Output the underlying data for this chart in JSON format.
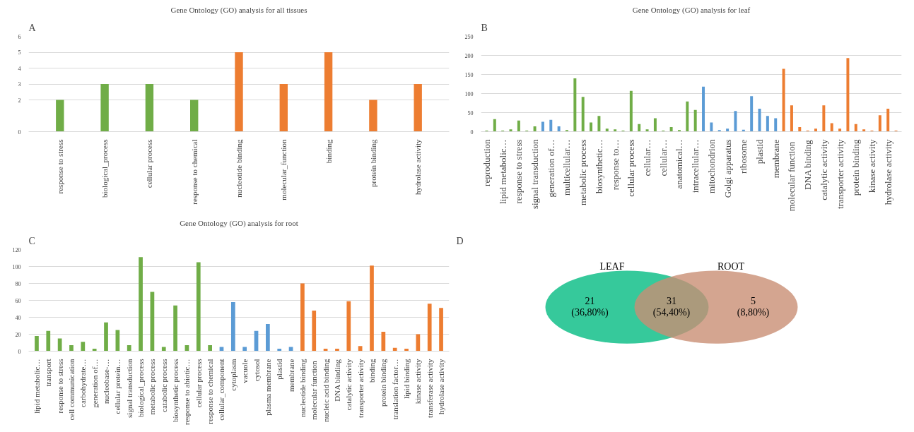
{
  "chart_data": [
    {
      "type": "bar",
      "title": "Gene Ontology (GO) analysis for all tissues",
      "annotations": [
        "A"
      ],
      "categories": [
        "response to stress",
        "biological_process",
        "cellular process",
        "response to chemical",
        "nucleotide binding",
        "molecular_function",
        "binding",
        "protein binding",
        "hydrolase activity"
      ],
      "values": [
        2,
        3,
        3,
        2,
        5,
        3,
        5,
        2,
        3
      ],
      "colors": [
        "#70ad47",
        "#70ad47",
        "#70ad47",
        "#70ad47",
        "#ed7d31",
        "#ed7d31",
        "#ed7d31",
        "#ed7d31",
        "#ed7d31"
      ],
      "ylim": [
        0,
        6
      ],
      "yticks": [
        0,
        2,
        3,
        4,
        5,
        6
      ],
      "grid": "y"
    },
    {
      "type": "bar",
      "title": "Gene Ontology (GO) analysis for leaf",
      "annotations": [
        "B"
      ],
      "categories": [
        "reproduction",
        null,
        "lipid metabolic…",
        null,
        "response to stress",
        null,
        "signal transduction",
        null,
        "generation of…",
        null,
        "multicellular…",
        null,
        "metabolic process",
        null,
        "biosynthetic…",
        null,
        "response to…",
        null,
        "cellular process",
        null,
        "cellular…",
        null,
        "cellular…",
        null,
        "anatomical…",
        null,
        "intracellular…",
        null,
        "mitochondrion",
        null,
        "Golgi apparatus",
        null,
        "ribosome",
        null,
        "plastid",
        null,
        "membrane",
        null,
        "molecular  function",
        null,
        "DNA binding",
        null,
        "catalytic activity",
        null,
        "transporter activity",
        null,
        "protein binding",
        null,
        "kinase activity",
        null,
        "hydrolase activity",
        null
      ],
      "values": [
        3,
        33,
        3,
        6,
        29,
        3,
        14,
        26,
        31,
        14,
        4,
        140,
        91,
        24,
        41,
        8,
        6,
        3,
        107,
        20,
        6,
        35,
        3,
        12,
        4,
        79,
        57,
        118,
        24,
        4,
        8,
        54,
        5,
        93,
        60,
        41,
        35,
        165,
        69,
        12,
        3,
        8,
        69,
        22,
        8,
        193,
        20,
        6,
        3,
        43,
        60,
        3
      ],
      "colors": [
        "#70ad47",
        "#70ad47",
        "#70ad47",
        "#70ad47",
        "#70ad47",
        "#70ad47",
        "#70ad47",
        "#5b9bd5",
        "#5b9bd5",
        "#5b9bd5",
        "#70ad47",
        "#70ad47",
        "#70ad47",
        "#70ad47",
        "#70ad47",
        "#70ad47",
        "#70ad47",
        "#70ad47",
        "#70ad47",
        "#70ad47",
        "#70ad47",
        "#70ad47",
        "#70ad47",
        "#70ad47",
        "#70ad47",
        "#70ad47",
        "#70ad47",
        "#5b9bd5",
        "#5b9bd5",
        "#5b9bd5",
        "#5b9bd5",
        "#5b9bd5",
        "#5b9bd5",
        "#5b9bd5",
        "#5b9bd5",
        "#5b9bd5",
        "#5b9bd5",
        "#ed7d31",
        "#ed7d31",
        "#ed7d31",
        "#ed7d31",
        "#ed7d31",
        "#ed7d31",
        "#ed7d31",
        "#ed7d31",
        "#ed7d31",
        "#ed7d31",
        "#ed7d31",
        "#ed7d31",
        "#ed7d31",
        "#ed7d31",
        "#ed7d31"
      ],
      "ylim": [
        0,
        250
      ],
      "yticks": [
        0,
        50,
        100,
        150,
        200,
        250
      ],
      "grid": "y"
    },
    {
      "type": "bar",
      "title": "Gene Ontology (GO) analysis for root",
      "annotations": [
        "C"
      ],
      "categories": [
        "lipid metabolic…",
        "transport",
        "response to stress",
        "cell communication",
        "carbohydrate…",
        "generation of…",
        "nucleobase-…",
        "cellular protein…",
        "signal transduction",
        "biological_process",
        "metabolic process",
        "catabolic process",
        "biosynthetic process",
        "response to abiotic…",
        "cellular process",
        "response to chemical",
        "cellular_component",
        "cytoplasm",
        "vacuole",
        "cytosol",
        "plasma membrane",
        "plastid",
        "membrane",
        "nucleotide binding",
        "molecular  function",
        "nucleic acid binding",
        "DNA binding",
        "catalytic activity",
        "transporter activity",
        "binding",
        "protein binding",
        "translation factor…",
        "lipid binding",
        "kinase activity",
        "transferase activity",
        "hydrolase activity"
      ],
      "values": [
        18,
        24,
        15,
        7,
        11,
        3,
        34,
        25,
        7,
        111,
        70,
        5,
        54,
        7,
        105,
        7,
        5,
        58,
        5,
        24,
        32,
        3,
        5,
        80,
        48,
        3,
        3,
        59,
        6,
        101,
        23,
        4,
        3,
        20,
        56,
        51
      ],
      "colors": [
        "#70ad47",
        "#70ad47",
        "#70ad47",
        "#70ad47",
        "#70ad47",
        "#70ad47",
        "#70ad47",
        "#70ad47",
        "#70ad47",
        "#70ad47",
        "#70ad47",
        "#70ad47",
        "#70ad47",
        "#70ad47",
        "#70ad47",
        "#70ad47",
        "#5b9bd5",
        "#5b9bd5",
        "#5b9bd5",
        "#5b9bd5",
        "#5b9bd5",
        "#5b9bd5",
        "#5b9bd5",
        "#ed7d31",
        "#ed7d31",
        "#ed7d31",
        "#ed7d31",
        "#ed7d31",
        "#ed7d31",
        "#ed7d31",
        "#ed7d31",
        "#ed7d31",
        "#ed7d31",
        "#ed7d31",
        "#ed7d31",
        "#ed7d31"
      ],
      "ylim": [
        0,
        120
      ],
      "yticks": [
        0,
        20,
        40,
        60,
        80,
        100,
        120
      ],
      "grid": "y"
    },
    {
      "type": "other",
      "annotations": [
        "D",
        "(36,80%)",
        "(54,40%)",
        "(8,80%)"
      ],
      "categories": [
        "LEAF",
        null,
        "ROOT"
      ],
      "colors": [
        "#36c99b",
        null,
        "#c98f74"
      ],
      "values": [
        21,
        31,
        5
      ],
      "data_labels": true
    }
  ]
}
